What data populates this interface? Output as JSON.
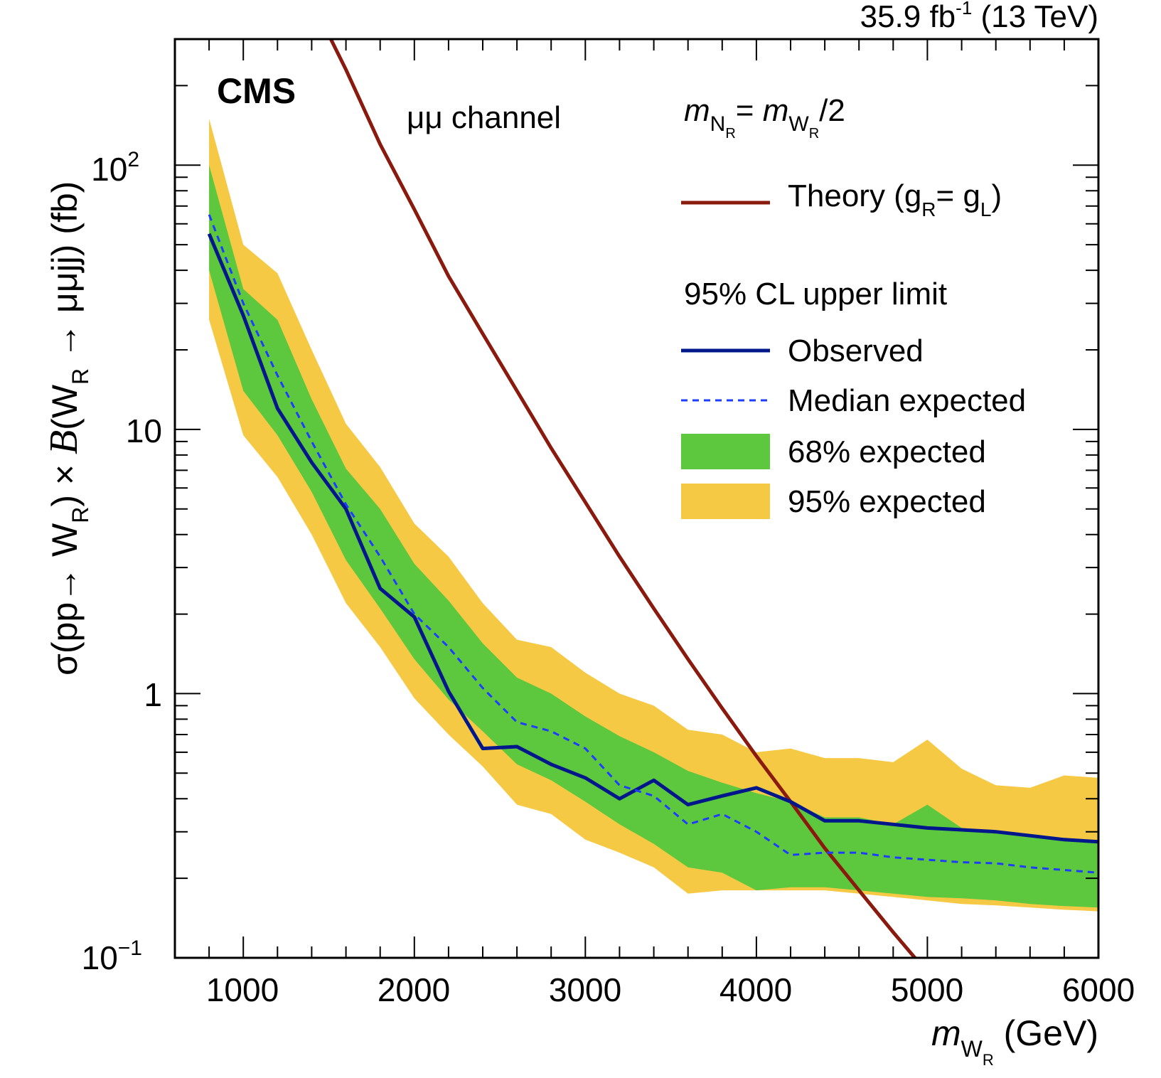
{
  "header": {
    "lumi_value": "35.9 fb",
    "lumi_exp": "-1",
    "lumi_energy": " (13 TeV)"
  },
  "annotations": {
    "experiment": "CMS",
    "channel": "μμ channel",
    "mass_relation": {
      "m": "m",
      "sub_n": "N",
      "subsub_n": "R",
      "eq": "= ",
      "m2": "m",
      "sub_w": "W",
      "subsub_w": "R",
      "rest": "/2"
    }
  },
  "legend": {
    "theory": {
      "label": "Theory (g",
      "sub1": "R",
      "mid": "= g",
      "sub2": "L",
      "end": ")"
    },
    "limit_header": "95% CL upper limit",
    "observed": "Observed",
    "median": "Median expected",
    "band68": "68% expected",
    "band95": "95% expected"
  },
  "axes": {
    "x_title": {
      "m": "m",
      "sub": "W",
      "subsub": "R",
      "unit": " (GeV)"
    },
    "y_title": {
      "p1": "σ(pp→ W",
      "s1": "R",
      "p2": ") × ",
      "B": "B",
      "p3": "(W",
      "s2": "R",
      "p4": " → μμjj) (fb)"
    },
    "x_ticks": [
      "1000",
      "2000",
      "3000",
      "4000",
      "5000",
      "6000"
    ],
    "y_ticks": {
      "t0_base": "10",
      "t0_exp": "−1",
      "t1": "1",
      "t2": "10",
      "t3_base": "10",
      "t3_exp": "2"
    }
  },
  "colors": {
    "theory": "#8B1A0E",
    "observed": "#00178C",
    "median": "#1E3CFF",
    "band68": "#5DC83D",
    "band95": "#F6C945"
  },
  "chart_data": {
    "type": "line",
    "xlim": [
      600,
      6000
    ],
    "ylim": [
      0.1,
      300
    ],
    "y_scale": "log",
    "legend_position": "top-right",
    "x": [
      800,
      1000,
      1200,
      1400,
      1600,
      1800,
      2000,
      2200,
      2400,
      2600,
      2800,
      3000,
      3200,
      3400,
      3600,
      3800,
      4000,
      4200,
      4400,
      4600,
      4800,
      5000,
      5200,
      5400,
      5600,
      5800,
      6000
    ],
    "series": [
      {
        "name": "Observed",
        "style": "solid",
        "values": [
          55,
          27,
          12,
          7.5,
          5.0,
          2.5,
          1.95,
          1.02,
          0.62,
          0.63,
          0.54,
          0.48,
          0.4,
          0.47,
          0.38,
          0.41,
          0.44,
          0.39,
          0.33,
          0.33,
          0.32,
          0.31,
          0.305,
          0.3,
          0.29,
          0.28,
          0.275
        ]
      },
      {
        "name": "Median expected",
        "style": "dashed",
        "values": [
          65,
          30,
          16,
          9,
          5.2,
          3.3,
          2.0,
          1.5,
          1.05,
          0.78,
          0.72,
          0.62,
          0.45,
          0.41,
          0.32,
          0.35,
          0.3,
          0.245,
          0.25,
          0.25,
          0.24,
          0.235,
          0.23,
          0.228,
          0.22,
          0.215,
          0.21
        ]
      }
    ],
    "bands": [
      {
        "name": "95% expected",
        "low": [
          26,
          9.5,
          6.6,
          4.0,
          2.2,
          1.5,
          0.96,
          0.7,
          0.53,
          0.38,
          0.35,
          0.28,
          0.25,
          0.22,
          0.175,
          0.18,
          0.18,
          0.18,
          0.18,
          0.175,
          0.17,
          0.165,
          0.16,
          0.158,
          0.155,
          0.152,
          0.15
        ],
        "high": [
          150,
          50,
          39,
          20,
          10.5,
          7.2,
          4.4,
          3.3,
          2.2,
          1.6,
          1.5,
          1.2,
          1.0,
          0.9,
          0.73,
          0.7,
          0.6,
          0.62,
          0.57,
          0.57,
          0.55,
          0.67,
          0.52,
          0.45,
          0.44,
          0.49,
          0.48
        ]
      },
      {
        "name": "68% expected",
        "low": [
          40,
          14,
          9.5,
          5.8,
          3.2,
          2.1,
          1.35,
          0.95,
          0.72,
          0.54,
          0.47,
          0.39,
          0.32,
          0.27,
          0.22,
          0.21,
          0.18,
          0.185,
          0.185,
          0.18,
          0.175,
          0.17,
          0.168,
          0.165,
          0.16,
          0.157,
          0.155
        ],
        "high": [
          100,
          34,
          26,
          13,
          7.1,
          5.0,
          3.1,
          2.25,
          1.55,
          1.15,
          1.0,
          0.82,
          0.69,
          0.6,
          0.51,
          0.46,
          0.42,
          0.39,
          0.34,
          0.34,
          0.32,
          0.38,
          0.31,
          0.3,
          0.29,
          0.28,
          0.275
        ]
      }
    ],
    "theory": {
      "name": "Theory (gR= gL)",
      "x": [
        1400,
        1600,
        1800,
        2000,
        2200,
        2400,
        2600,
        2800,
        3000,
        3200,
        3400,
        3600,
        3800,
        4000,
        4200,
        4400,
        4600,
        4800,
        5000
      ],
      "values": [
        420,
        230,
        120,
        68,
        38,
        23,
        14,
        8.5,
        5.3,
        3.3,
        2.1,
        1.35,
        0.88,
        0.58,
        0.39,
        0.26,
        0.18,
        0.125,
        0.088
      ]
    }
  }
}
